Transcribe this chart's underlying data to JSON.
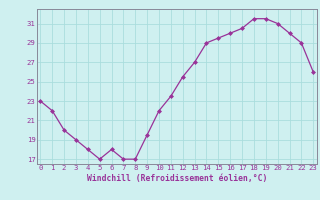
{
  "x": [
    0,
    1,
    2,
    3,
    4,
    5,
    6,
    7,
    8,
    9,
    10,
    11,
    12,
    13,
    14,
    15,
    16,
    17,
    18,
    19,
    20,
    21,
    22,
    23
  ],
  "y": [
    23,
    22,
    20,
    19,
    18,
    17,
    18,
    17,
    17,
    19.5,
    22,
    23.5,
    25.5,
    27,
    29,
    29.5,
    30,
    30.5,
    31.5,
    31.5,
    31,
    30,
    29,
    26
  ],
  "xlim": [
    -0.3,
    23.3
  ],
  "ylim": [
    16.5,
    32.5
  ],
  "yticks": [
    17,
    19,
    21,
    23,
    25,
    27,
    29,
    31
  ],
  "xticks": [
    0,
    1,
    2,
    3,
    4,
    5,
    6,
    7,
    8,
    9,
    10,
    11,
    12,
    13,
    14,
    15,
    16,
    17,
    18,
    19,
    20,
    21,
    22,
    23
  ],
  "xlabel": "Windchill (Refroidissement éolien,°C)",
  "line_color": "#993399",
  "marker_color": "#993399",
  "bg_color": "#cff0f0",
  "grid_color": "#aadddd",
  "axis_color": "#888899",
  "tick_label_color": "#993399",
  "xlabel_color": "#993399",
  "tick_fontsize": 5.2,
  "xlabel_fontsize": 5.8
}
